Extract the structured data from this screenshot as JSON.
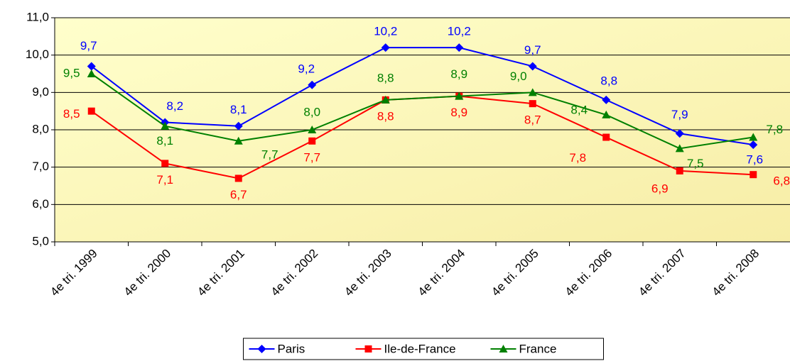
{
  "chart_data": {
    "type": "line",
    "categories": [
      "4e tri. 1999",
      "4e tri. 2000",
      "4e tri. 2001",
      "4e tri. 2002",
      "4e tri. 2003",
      "4e tri. 2004",
      "4e tri. 2005",
      "4e tri. 2006",
      "4e tri. 2007",
      "4e tri. 2008"
    ],
    "series": [
      {
        "name": "Paris",
        "color": "#0000ff",
        "marker": "diamond",
        "values": [
          9.7,
          8.2,
          8.1,
          9.2,
          10.2,
          10.2,
          9.7,
          8.8,
          7.9,
          7.6
        ],
        "value_labels": [
          "9,7",
          "8,2",
          "8,1",
          "9,2",
          "10,2",
          "10,2",
          "9,7",
          "8,8",
          "7,9",
          "7,6"
        ]
      },
      {
        "name": "Ile-de-France",
        "color": "#ff0000",
        "marker": "square",
        "values": [
          8.5,
          7.1,
          6.7,
          7.7,
          8.8,
          8.9,
          8.7,
          7.8,
          6.9,
          6.8
        ],
        "value_labels": [
          "8,5",
          "7,1",
          "6,7",
          "7,7",
          "8,8",
          "8,9",
          "8,7",
          "7,8",
          "6,9",
          "6,8"
        ]
      },
      {
        "name": "France",
        "color": "#008000",
        "marker": "triangle",
        "values": [
          9.5,
          8.1,
          7.7,
          8.0,
          8.8,
          8.9,
          9.0,
          8.4,
          7.5,
          7.8
        ],
        "value_labels": [
          "9,5",
          "8,1",
          "7,7",
          "8,0",
          "8,8",
          "8,9",
          "9,0",
          "8,4",
          "7,5",
          "7,8"
        ]
      }
    ],
    "ylim": [
      5,
      11
    ],
    "yticks": [
      {
        "value": 5,
        "label": "5,0"
      },
      {
        "value": 6,
        "label": "6,0"
      },
      {
        "value": 7,
        "label": "7,0"
      },
      {
        "value": 8,
        "label": "8,0"
      },
      {
        "value": 9,
        "label": "9,0"
      },
      {
        "value": 10,
        "label": "10,0"
      },
      {
        "value": 11,
        "label": "11,0"
      }
    ],
    "grid": true,
    "legend": "bottom"
  }
}
